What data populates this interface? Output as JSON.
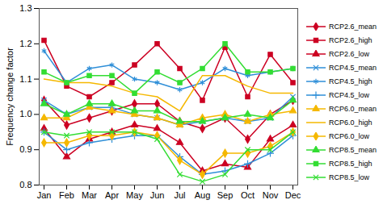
{
  "chart_data": {
    "type": "line",
    "y_label": "Frequency change factor",
    "categories": [
      "Jan",
      "Feb",
      "Mar",
      "Apr",
      "May",
      "Jun",
      "Jul",
      "Aug",
      "Sep",
      "Oct",
      "Nov",
      "Dec"
    ],
    "ylim": [
      0.8,
      1.3
    ],
    "yticks": [
      0.8,
      0.9,
      {
        "value": 1,
        "label": "1.0"
      },
      1.1,
      1.2,
      1.3
    ],
    "grid": false,
    "legend": "right",
    "series": [
      {
        "name": "RCP2.6_mean",
        "color": "#cc0022",
        "marker": "diamond",
        "values": [
          1.04,
          0.97,
          0.99,
          1.01,
          1.03,
          1.03,
          0.98,
          0.96,
          0.99,
          0.93,
          1.0,
          1.04
        ]
      },
      {
        "name": "RCP2.6_high",
        "color": "#cc0022",
        "marker": "square",
        "values": [
          1.21,
          1.08,
          1.05,
          1.09,
          1.14,
          1.2,
          1.13,
          1.04,
          1.19,
          1.05,
          1.17,
          1.09
        ]
      },
      {
        "name": "RCP2.6_low",
        "color": "#cc0022",
        "marker": "triangle",
        "values": [
          0.96,
          0.88,
          0.93,
          0.95,
          0.97,
          0.96,
          0.92,
          0.84,
          0.86,
          0.85,
          0.93,
          0.97
        ]
      },
      {
        "name": "RCP4.5_mean",
        "color": "#2f8fd8",
        "marker": "times",
        "values": [
          1.04,
          1.0,
          1.02,
          1.02,
          1.0,
          0.99,
          0.97,
          0.98,
          0.99,
          0.98,
          0.99,
          1.05
        ]
      },
      {
        "name": "RCP4.5_high",
        "color": "#2f8fd8",
        "marker": "asterisk",
        "values": [
          1.18,
          1.09,
          1.13,
          1.14,
          1.1,
          1.09,
          1.07,
          1.09,
          1.13,
          1.11,
          1.12,
          1.13
        ]
      },
      {
        "name": "RCP4.5_low",
        "color": "#2f8fd8",
        "marker": "plus",
        "values": [
          0.95,
          0.9,
          0.92,
          0.93,
          0.94,
          0.94,
          0.88,
          0.83,
          0.84,
          0.86,
          0.89,
          0.94
        ]
      },
      {
        "name": "RCP6.0_mean",
        "color": "#f5b800",
        "marker": "triangle",
        "values": [
          0.99,
          0.99,
          1.02,
          1.01,
          1.0,
          0.99,
          0.97,
          0.99,
          1.0,
          0.98,
          1.0,
          1.01
        ]
      },
      {
        "name": "RCP6.0_high",
        "color": "#f5b800",
        "marker": "none",
        "values": [
          1.1,
          1.09,
          1.09,
          1.08,
          1.06,
          1.05,
          1.01,
          1.11,
          1.11,
          1.08,
          1.06,
          1.06
        ]
      },
      {
        "name": "RCP6.0_low",
        "color": "#f5b800",
        "marker": "diamond",
        "values": [
          0.92,
          0.92,
          0.94,
          0.94,
          0.95,
          0.94,
          0.87,
          0.83,
          0.89,
          0.89,
          0.91,
          0.95
        ]
      },
      {
        "name": "RCP8.5_mean",
        "color": "#33dd33",
        "marker": "triangle",
        "values": [
          1.03,
          1.0,
          1.03,
          1.03,
          1.01,
          1.01,
          0.98,
          0.98,
          0.99,
          1.0,
          0.99,
          1.04
        ]
      },
      {
        "name": "RCP8.5_high",
        "color": "#33dd33",
        "marker": "square",
        "values": [
          1.12,
          1.09,
          1.11,
          1.11,
          1.06,
          1.12,
          1.09,
          1.13,
          1.2,
          1.12,
          1.12,
          1.13
        ]
      },
      {
        "name": "RCP8.5_low",
        "color": "#33dd33",
        "marker": "times",
        "values": [
          0.95,
          0.94,
          0.95,
          0.95,
          0.95,
          0.93,
          0.83,
          0.81,
          0.83,
          0.9,
          0.9,
          0.95
        ]
      }
    ]
  }
}
